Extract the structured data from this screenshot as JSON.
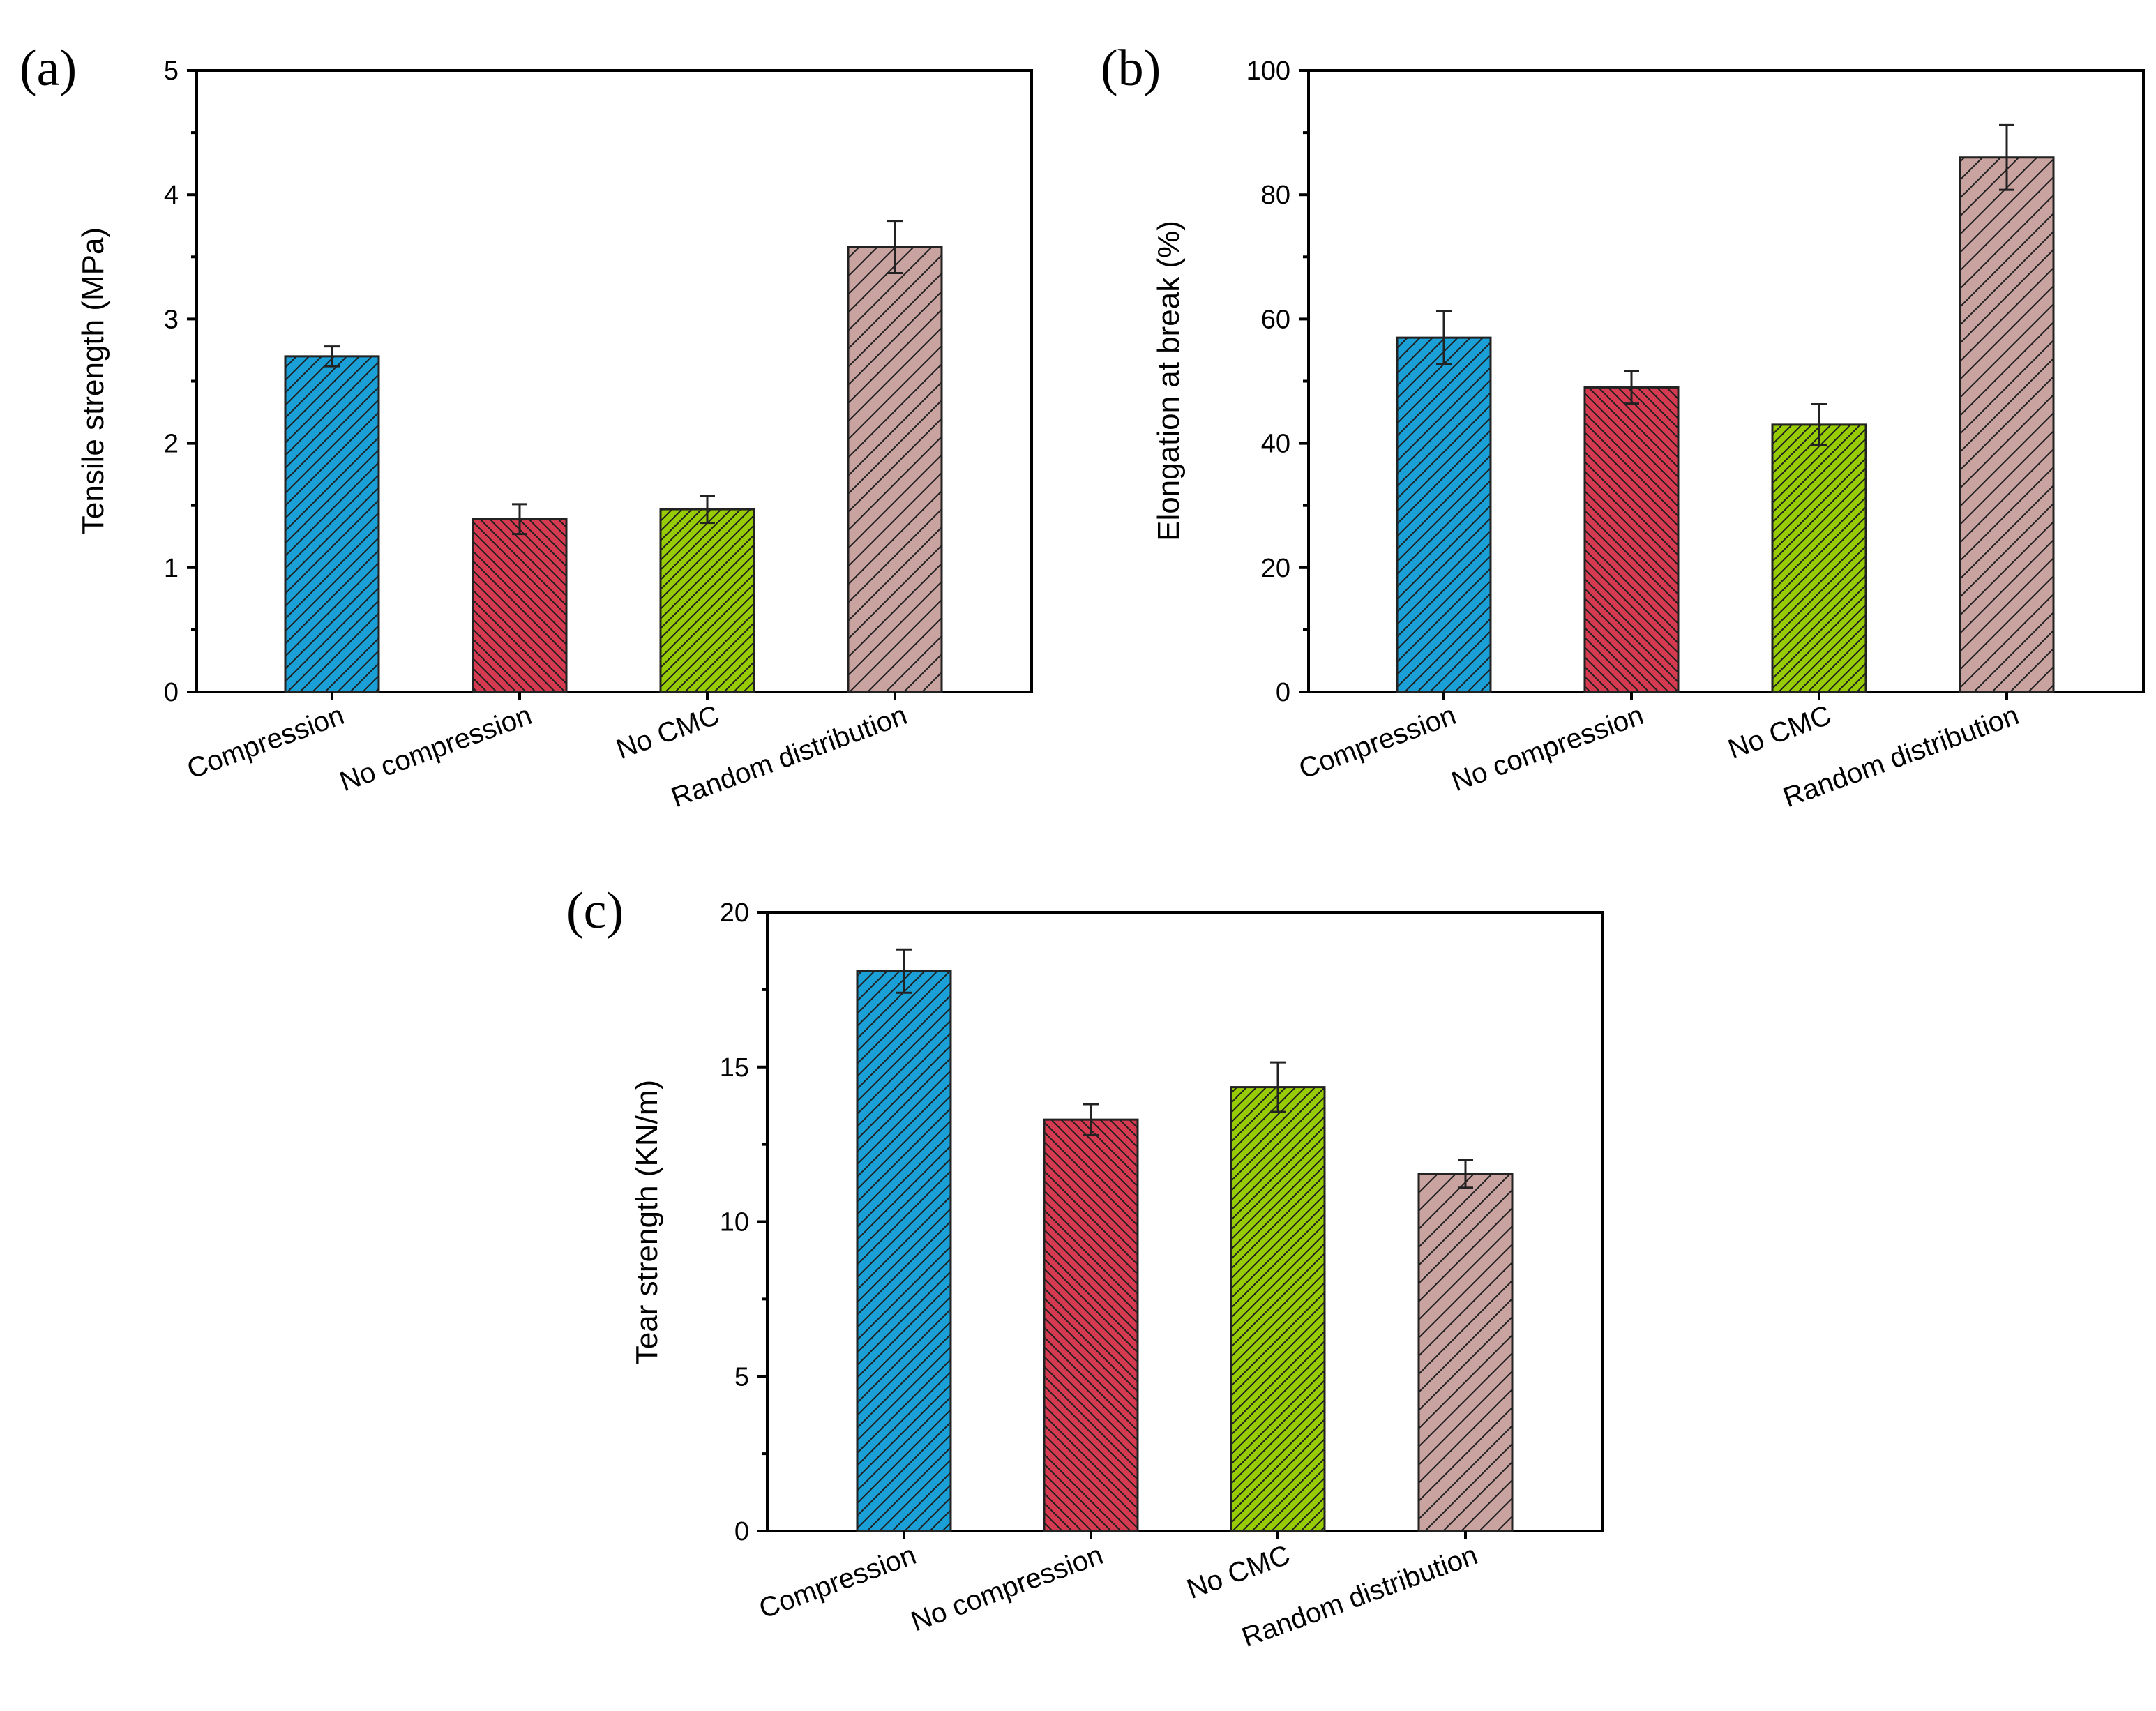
{
  "colors": {
    "bar_fills": [
      "#1a9fd6",
      "#d53a50",
      "#97cc04",
      "#c9a3a0"
    ],
    "hatch": "#1e1e1e"
  },
  "chart_data": [
    {
      "panel": "(a)",
      "type": "bar",
      "categories": [
        "Compression",
        "No compression",
        "No CMC",
        "Random distribution"
      ],
      "values": [
        2.7,
        1.39,
        1.47,
        3.58
      ],
      "errors": [
        0.08,
        0.12,
        0.11,
        0.21
      ],
      "ylabel": "Tensile strength (MPa)",
      "xlabel": "",
      "ylim": [
        0,
        5
      ],
      "yticks": [
        0,
        1,
        2,
        3,
        4,
        5
      ],
      "ytick_labels": [
        "0",
        "1",
        "2",
        "3",
        "4",
        "5"
      ]
    },
    {
      "panel": "(b)",
      "type": "bar",
      "categories": [
        "Compression",
        "No compression",
        "No CMC",
        "Random distribution"
      ],
      "values": [
        57,
        49,
        43,
        86
      ],
      "errors": [
        4.3,
        2.6,
        3.3,
        5.2
      ],
      "ylabel": "Elongation at break (%)",
      "xlabel": "",
      "ylim": [
        0,
        100
      ],
      "yticks": [
        0,
        20,
        40,
        60,
        80,
        100
      ],
      "ytick_labels": [
        "0",
        "20",
        "40",
        "60",
        "80",
        "100"
      ]
    },
    {
      "panel": "(c)",
      "type": "bar",
      "categories": [
        "Compression",
        "No compression",
        "No CMC",
        "Random distribution"
      ],
      "values": [
        18.1,
        13.3,
        14.35,
        11.55
      ],
      "errors": [
        0.7,
        0.5,
        0.8,
        0.45
      ],
      "ylabel": "Tear strength (KN/m)",
      "xlabel": "",
      "ylim": [
        0,
        20
      ],
      "yticks": [
        0,
        5,
        10,
        15,
        20
      ],
      "ytick_labels": [
        "0",
        "5",
        "10",
        "15",
        "20"
      ]
    }
  ]
}
